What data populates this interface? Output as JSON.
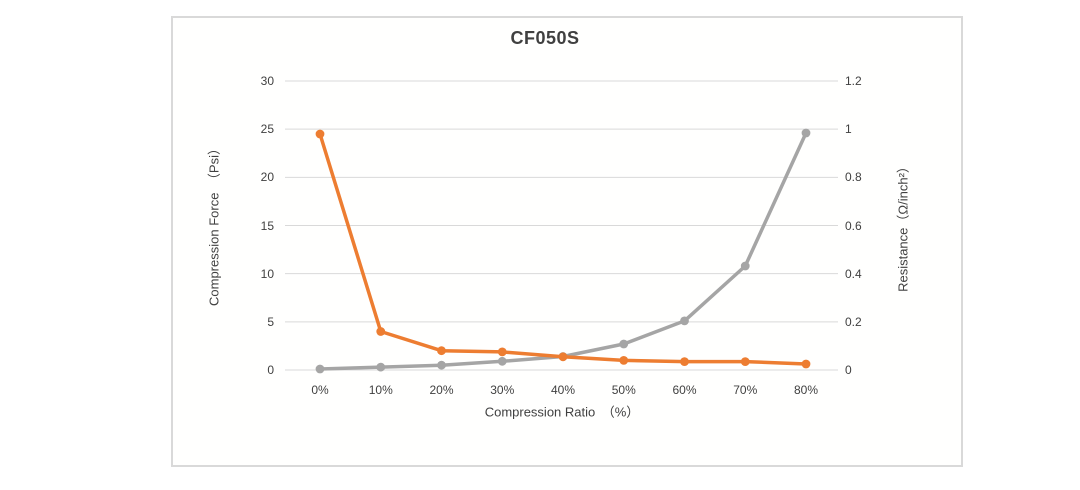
{
  "chart_data": {
    "type": "line",
    "title": "CF050S",
    "categories": [
      "0%",
      "10%",
      "20%",
      "30%",
      "40%",
      "50%",
      "60%",
      "70%",
      "80%"
    ],
    "xlabel": "Compression Ratio　（%）",
    "grid": true,
    "legend": "none",
    "colors": {
      "accent_orange": "#ED7D31",
      "accent_gray": "#A5A5A5",
      "gridline": "#D9D9D9",
      "text": "#404040"
    },
    "left_axis": {
      "label": "Compression Force　（Psi）",
      "range": [
        0,
        30
      ],
      "tick_values": [
        0,
        5,
        10,
        15,
        20,
        25,
        30
      ],
      "tick_labels": [
        "0",
        "5",
        "10",
        "15",
        "20",
        "25",
        "30"
      ]
    },
    "right_axis": {
      "label": "Resistance（Ω/inch²）",
      "range": [
        0,
        1.2
      ],
      "tick_values": [
        0,
        0.2,
        0.4,
        0.6,
        0.8,
        1,
        1.2
      ],
      "tick_labels": [
        "0",
        "0.2",
        "0.4",
        "0.6",
        "0.8",
        "1",
        "1.2"
      ]
    },
    "series": [
      {
        "id": "compression-force",
        "name": "Compression Force",
        "unit": "Psi",
        "axis": "left",
        "color": "#A5A5A5",
        "values": [
          0.1,
          0.3,
          0.5,
          0.9,
          1.4,
          2.7,
          5.1,
          10.8,
          24.6
        ]
      },
      {
        "id": "resistance",
        "name": "Resistance",
        "unit": "Ω/inch²",
        "axis": "right",
        "color": "#ED7D31",
        "values": [
          0.98,
          0.16,
          0.08,
          0.075,
          0.055,
          0.04,
          0.035,
          0.035,
          0.025
        ]
      }
    ]
  }
}
